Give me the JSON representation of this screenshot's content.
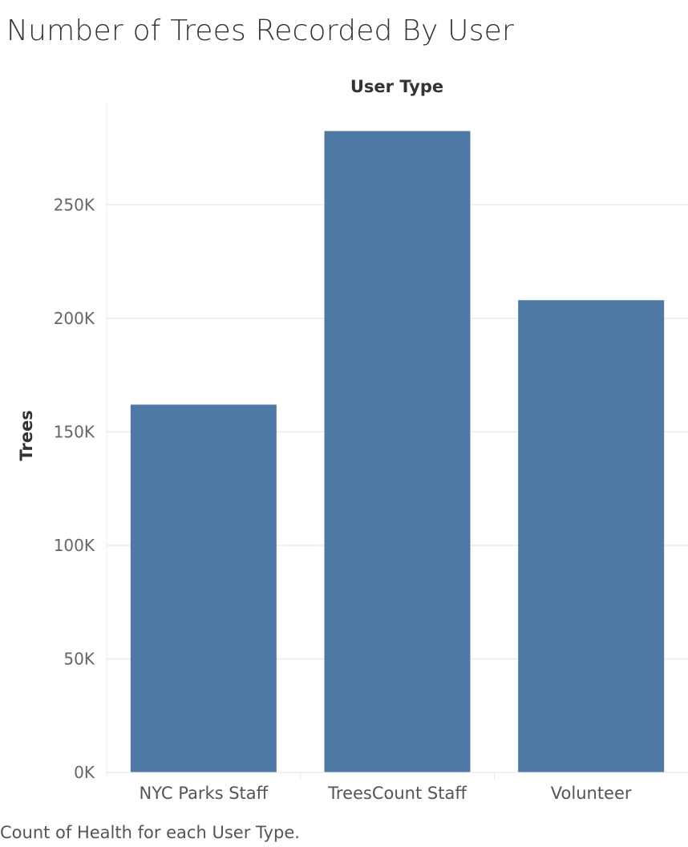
{
  "title": "Number of Trees Recorded By User",
  "footnote": "Count of Health for each User Type.",
  "chart_data": {
    "type": "bar",
    "column_header": "User Type",
    "ylabel": "Trees",
    "xlabel": "",
    "categories": [
      "NYC Parks Staff",
      "TreesCount Staff",
      "Volunteer"
    ],
    "values": [
      162000,
      282500,
      208000
    ],
    "ylim": [
      0,
      295000
    ],
    "yticks": [
      0,
      50000,
      100000,
      150000,
      200000,
      250000
    ],
    "ytick_labels": [
      "0K",
      "50K",
      "100K",
      "150K",
      "200K",
      "250K"
    ],
    "bar_color": "#4e79a7",
    "grid": true
  }
}
